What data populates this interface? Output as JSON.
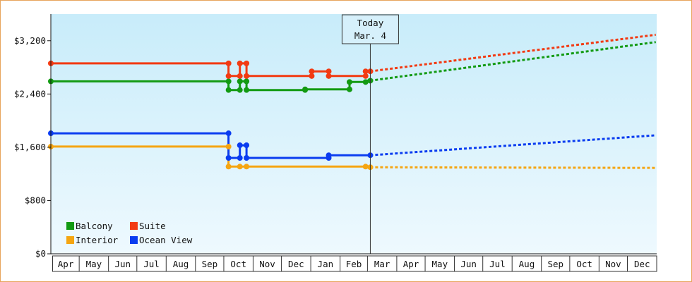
{
  "colors": {
    "Balcony": "#129a12",
    "Suite": "#f23a12",
    "Interior": "#f5a511",
    "Ocean View": "#0a3cf0",
    "plot_top": "#c8ecfa",
    "plot_bottom": "#eef9fe",
    "frame": "#e8a45c"
  },
  "chart_data": {
    "type": "line",
    "x_axis": {
      "type": "time",
      "range": [
        "2023-04-01",
        "2024-12-31"
      ],
      "tick_labels": [
        "Apr",
        "May",
        "Jun",
        "Jul",
        "Aug",
        "Sep",
        "Oct",
        "Nov",
        "Dec",
        "Jan",
        "Feb",
        "Mar",
        "Apr",
        "May",
        "Jun",
        "Jul",
        "Aug",
        "Sep",
        "Oct",
        "Nov",
        "Dec"
      ]
    },
    "y_axis": {
      "range": [
        0,
        3600
      ],
      "ticks": [
        0,
        800,
        1600,
        2400,
        3200
      ],
      "tick_labels": [
        "$0",
        "$800",
        "$1,600",
        "$2,400",
        "$3,200"
      ]
    },
    "today_marker": {
      "line1": "Today",
      "line2": "Mar. 4",
      "date": "2024-03-04"
    },
    "legend": {
      "placement": "bottom-left",
      "entries": [
        "Balcony",
        "Suite",
        "Interior",
        "Ocean View"
      ]
    },
    "series": [
      {
        "name": "Balcony",
        "history": [
          [
            "2023-04-01",
            2590
          ],
          [
            "2023-10-06",
            2590
          ],
          [
            "2023-10-06",
            2460
          ],
          [
            "2023-10-18",
            2460
          ],
          [
            "2023-10-18",
            2590
          ],
          [
            "2023-10-25",
            2590
          ],
          [
            "2023-10-25",
            2460
          ],
          [
            "2023-12-26",
            2460
          ],
          [
            "2023-12-26",
            2470
          ],
          [
            "2024-02-11",
            2470
          ],
          [
            "2024-02-11",
            2580
          ],
          [
            "2024-02-28",
            2580
          ],
          [
            "2024-02-28",
            2600
          ],
          [
            "2024-03-04",
            2600
          ]
        ],
        "markers": [
          [
            "2023-04-01",
            2590
          ],
          [
            "2023-10-06",
            2590
          ],
          [
            "2023-10-06",
            2460
          ],
          [
            "2023-10-18",
            2460
          ],
          [
            "2023-10-18",
            2590
          ],
          [
            "2023-10-25",
            2590
          ],
          [
            "2023-10-25",
            2460
          ],
          [
            "2023-12-26",
            2460
          ],
          [
            "2023-12-26",
            2470
          ],
          [
            "2024-02-11",
            2470
          ],
          [
            "2024-02-11",
            2580
          ],
          [
            "2024-02-28",
            2580
          ],
          [
            "2024-03-04",
            2600
          ]
        ],
        "forecast": [
          [
            "2024-03-04",
            2600
          ],
          [
            "2024-12-31",
            3180
          ]
        ]
      },
      {
        "name": "Suite",
        "history": [
          [
            "2023-04-01",
            2860
          ],
          [
            "2023-10-06",
            2860
          ],
          [
            "2023-10-06",
            2670
          ],
          [
            "2023-10-18",
            2670
          ],
          [
            "2023-10-18",
            2860
          ],
          [
            "2023-10-25",
            2860
          ],
          [
            "2023-10-25",
            2670
          ],
          [
            "2024-01-02",
            2670
          ],
          [
            "2024-01-02",
            2740
          ],
          [
            "2024-01-20",
            2740
          ],
          [
            "2024-01-20",
            2670
          ],
          [
            "2024-02-28",
            2670
          ],
          [
            "2024-02-28",
            2740
          ],
          [
            "2024-03-04",
            2740
          ]
        ],
        "markers": [
          [
            "2023-04-01",
            2860
          ],
          [
            "2023-10-06",
            2860
          ],
          [
            "2023-10-06",
            2670
          ],
          [
            "2023-10-18",
            2670
          ],
          [
            "2023-10-18",
            2860
          ],
          [
            "2023-10-25",
            2860
          ],
          [
            "2023-10-25",
            2670
          ],
          [
            "2024-01-02",
            2670
          ],
          [
            "2024-01-02",
            2740
          ],
          [
            "2024-01-20",
            2740
          ],
          [
            "2024-01-20",
            2670
          ],
          [
            "2024-02-28",
            2670
          ],
          [
            "2024-02-28",
            2740
          ],
          [
            "2024-03-04",
            2740
          ]
        ],
        "forecast": [
          [
            "2024-03-04",
            2740
          ],
          [
            "2024-12-31",
            3290
          ]
        ]
      },
      {
        "name": "Interior",
        "history": [
          [
            "2023-04-01",
            1610
          ],
          [
            "2023-10-06",
            1610
          ],
          [
            "2023-10-06",
            1310
          ],
          [
            "2024-02-28",
            1310
          ],
          [
            "2024-02-28",
            1300
          ],
          [
            "2024-03-04",
            1300
          ]
        ],
        "markers": [
          [
            "2023-04-01",
            1610
          ],
          [
            "2023-10-06",
            1610
          ],
          [
            "2023-10-06",
            1310
          ],
          [
            "2023-10-18",
            1310
          ],
          [
            "2023-10-25",
            1310
          ],
          [
            "2024-02-28",
            1310
          ],
          [
            "2024-03-04",
            1300
          ]
        ],
        "forecast": [
          [
            "2024-03-04",
            1300
          ],
          [
            "2024-12-31",
            1290
          ]
        ]
      },
      {
        "name": "Ocean View",
        "history": [
          [
            "2023-04-01",
            1810
          ],
          [
            "2023-10-06",
            1810
          ],
          [
            "2023-10-06",
            1440
          ],
          [
            "2023-10-18",
            1440
          ],
          [
            "2023-10-18",
            1630
          ],
          [
            "2023-10-25",
            1630
          ],
          [
            "2023-10-25",
            1440
          ],
          [
            "2024-01-20",
            1440
          ],
          [
            "2024-01-20",
            1480
          ],
          [
            "2024-03-04",
            1480
          ]
        ],
        "markers": [
          [
            "2023-04-01",
            1810
          ],
          [
            "2023-10-06",
            1810
          ],
          [
            "2023-10-06",
            1440
          ],
          [
            "2023-10-18",
            1440
          ],
          [
            "2023-10-18",
            1630
          ],
          [
            "2023-10-25",
            1630
          ],
          [
            "2023-10-25",
            1440
          ],
          [
            "2024-01-20",
            1440
          ],
          [
            "2024-01-20",
            1480
          ],
          [
            "2024-03-04",
            1480
          ]
        ],
        "forecast": [
          [
            "2024-03-04",
            1480
          ],
          [
            "2024-12-31",
            1780
          ]
        ]
      }
    ]
  }
}
